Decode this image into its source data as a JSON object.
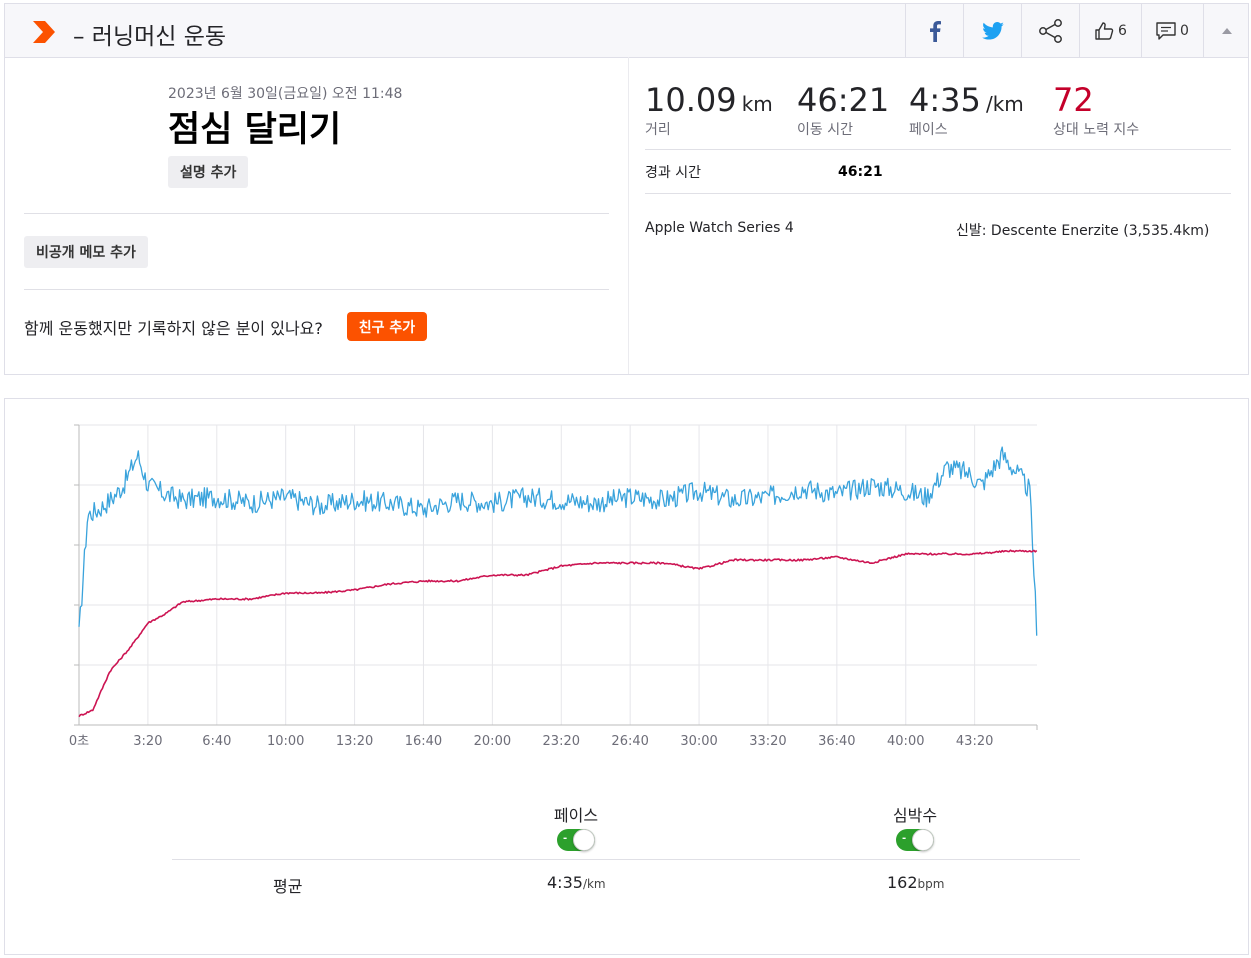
{
  "header": {
    "title": "– 러닝머신 운동",
    "kudos_count": "6",
    "comment_count": "0"
  },
  "activity": {
    "datetime": "2023년 6월 30일(금요일) 오전 11:48",
    "name": "점심 달리기",
    "add_description": "설명 추가",
    "add_private_note": "비공개 메모 추가",
    "friend_question": "함께 운동했지만 기록하지 않은 분이 있나요?",
    "add_friend": "친구 추가"
  },
  "stats": {
    "distance": {
      "value": "10.09",
      "unit": "km",
      "label": "거리"
    },
    "moving_time": {
      "value": "46:21",
      "label": "이동 시간"
    },
    "pace": {
      "value": "4:35",
      "unit": "/km",
      "label": "페이스"
    },
    "relative_effort": {
      "value": "72",
      "label": "상대 노력 지수"
    },
    "elapsed_label": "경과 시간",
    "elapsed_value": "46:21",
    "device": "Apple Watch Series 4",
    "shoes": "신발: Descente Enerzite (3,535.4km)"
  },
  "colors": {
    "brand": "#fc5200",
    "pace_line": "#3aa3dc",
    "heartrate_line": "#cc1452",
    "effort": "#c4002a"
  },
  "chart_data": {
    "type": "line",
    "x_ticks": [
      "0초",
      "3:20",
      "6:40",
      "10:00",
      "13:20",
      "16:40",
      "20:00",
      "23:20",
      "26:40",
      "30:00",
      "33:20",
      "36:40",
      "40:00",
      "43:20"
    ],
    "xlim_seconds": [
      0,
      2781
    ],
    "grid": true,
    "series": [
      {
        "name": "페이스",
        "x_seconds": [
          0,
          25,
          60,
          100,
          130,
          170,
          200,
          250,
          300,
          400,
          500,
          600,
          700,
          800,
          900,
          1000,
          1100,
          1200,
          1300,
          1400,
          1500,
          1600,
          1700,
          1800,
          1900,
          2000,
          2100,
          2200,
          2300,
          2400,
          2460,
          2520,
          2580,
          2620,
          2680,
          2730,
          2760,
          2775,
          2781
        ],
        "values": [
          0.3,
          0.7,
          0.72,
          0.76,
          0.8,
          0.9,
          0.8,
          0.77,
          0.75,
          0.76,
          0.74,
          0.76,
          0.73,
          0.75,
          0.74,
          0.72,
          0.75,
          0.74,
          0.76,
          0.75,
          0.74,
          0.76,
          0.75,
          0.78,
          0.75,
          0.76,
          0.79,
          0.77,
          0.8,
          0.78,
          0.76,
          0.86,
          0.84,
          0.8,
          0.9,
          0.83,
          0.78,
          0.45,
          0.25
        ]
      },
      {
        "name": "심박수",
        "x_seconds": [
          0,
          40,
          90,
          150,
          200,
          250,
          300,
          400,
          500,
          600,
          700,
          800,
          900,
          1000,
          1100,
          1200,
          1300,
          1400,
          1500,
          1600,
          1700,
          1800,
          1900,
          2000,
          2100,
          2200,
          2300,
          2400,
          2500,
          2600,
          2700,
          2781
        ],
        "values": [
          0.03,
          0.05,
          0.18,
          0.26,
          0.34,
          0.37,
          0.41,
          0.42,
          0.42,
          0.44,
          0.44,
          0.45,
          0.47,
          0.48,
          0.48,
          0.5,
          0.5,
          0.53,
          0.54,
          0.54,
          0.54,
          0.52,
          0.55,
          0.55,
          0.55,
          0.56,
          0.54,
          0.57,
          0.57,
          0.57,
          0.58,
          0.58
        ]
      }
    ]
  },
  "legend": {
    "pace": "페이스",
    "heartrate": "심박수"
  },
  "averages": {
    "label": "평균",
    "pace_value": "4:35",
    "pace_unit": "/km",
    "hr_value": "162",
    "hr_unit": "bpm"
  }
}
